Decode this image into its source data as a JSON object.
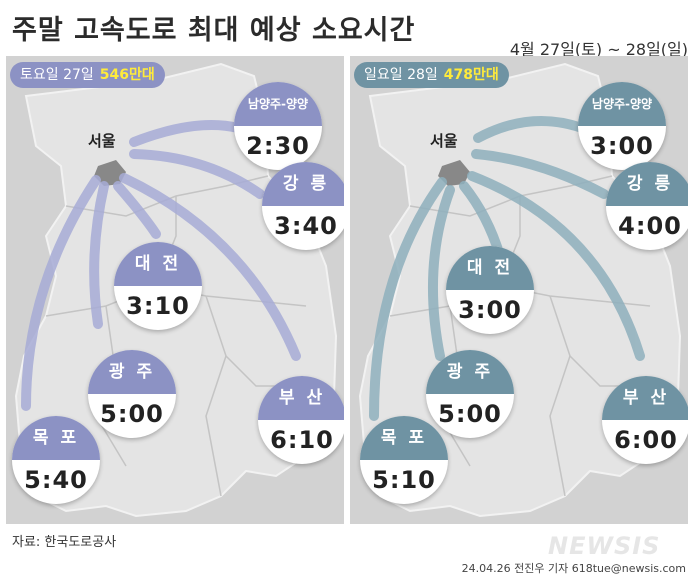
{
  "title": "주말 고속도로 최대 예상 소요시간",
  "date_range": "4월 27일(토) ~ 28일(일)",
  "saturday": {
    "banner_label": "토요일 27일",
    "traffic": "546만대",
    "origin": "서울",
    "cities": [
      {
        "name": "남양주-양양",
        "time": "2:30"
      },
      {
        "name": "강 릉",
        "time": "3:40"
      },
      {
        "name": "대 전",
        "time": "3:10"
      },
      {
        "name": "광 주",
        "time": "5:00"
      },
      {
        "name": "부 산",
        "time": "6:10"
      },
      {
        "name": "목 포",
        "time": "5:40"
      }
    ]
  },
  "sunday": {
    "banner_label": "일요일 28일",
    "traffic": "478만대",
    "origin": "서울",
    "cities": [
      {
        "name": "남양주-양양",
        "time": "3:00"
      },
      {
        "name": "강 릉",
        "time": "4:00"
      },
      {
        "name": "대 전",
        "time": "3:00"
      },
      {
        "name": "광 주",
        "time": "5:00"
      },
      {
        "name": "부 산",
        "time": "6:00"
      },
      {
        "name": "목 포",
        "time": "5:10"
      }
    ]
  },
  "colors": {
    "saturday_accent": "#8c92c4",
    "sunday_accent": "#6f93a3",
    "traffic_highlight": "#ffeb3b"
  },
  "source": "자료: 한국도로공사",
  "logo": "NEWSIS",
  "credit": "24.04.26 전진우 기자 618tue@newsis.com"
}
